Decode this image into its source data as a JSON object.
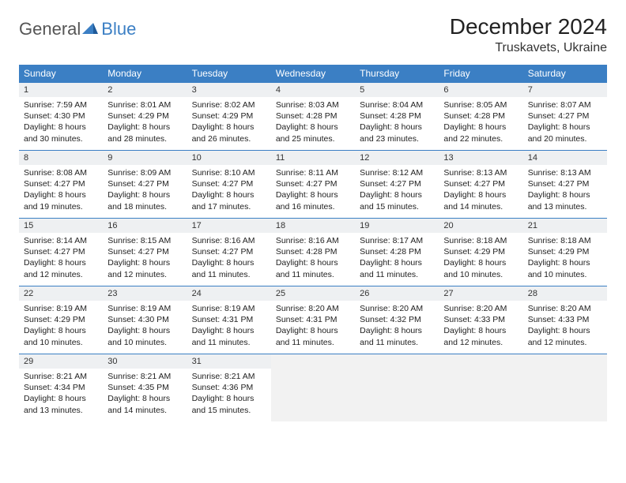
{
  "brand": {
    "general": "General",
    "blue": "Blue"
  },
  "title": "December 2024",
  "location": "Truskavets, Ukraine",
  "colors": {
    "header_bg": "#3b7fc4",
    "header_text": "#ffffff",
    "daynum_bg": "#eef0f2",
    "empty_bg": "#f2f2f2",
    "border": "#3b7fc4",
    "page_bg": "#ffffff",
    "text": "#333333"
  },
  "day_headers": [
    "Sunday",
    "Monday",
    "Tuesday",
    "Wednesday",
    "Thursday",
    "Friday",
    "Saturday"
  ],
  "days": [
    {
      "n": "1",
      "sr": "7:59 AM",
      "ss": "4:30 PM",
      "dl": "8 hours and 30 minutes."
    },
    {
      "n": "2",
      "sr": "8:01 AM",
      "ss": "4:29 PM",
      "dl": "8 hours and 28 minutes."
    },
    {
      "n": "3",
      "sr": "8:02 AM",
      "ss": "4:29 PM",
      "dl": "8 hours and 26 minutes."
    },
    {
      "n": "4",
      "sr": "8:03 AM",
      "ss": "4:28 PM",
      "dl": "8 hours and 25 minutes."
    },
    {
      "n": "5",
      "sr": "8:04 AM",
      "ss": "4:28 PM",
      "dl": "8 hours and 23 minutes."
    },
    {
      "n": "6",
      "sr": "8:05 AM",
      "ss": "4:28 PM",
      "dl": "8 hours and 22 minutes."
    },
    {
      "n": "7",
      "sr": "8:07 AM",
      "ss": "4:27 PM",
      "dl": "8 hours and 20 minutes."
    },
    {
      "n": "8",
      "sr": "8:08 AM",
      "ss": "4:27 PM",
      "dl": "8 hours and 19 minutes."
    },
    {
      "n": "9",
      "sr": "8:09 AM",
      "ss": "4:27 PM",
      "dl": "8 hours and 18 minutes."
    },
    {
      "n": "10",
      "sr": "8:10 AM",
      "ss": "4:27 PM",
      "dl": "8 hours and 17 minutes."
    },
    {
      "n": "11",
      "sr": "8:11 AM",
      "ss": "4:27 PM",
      "dl": "8 hours and 16 minutes."
    },
    {
      "n": "12",
      "sr": "8:12 AM",
      "ss": "4:27 PM",
      "dl": "8 hours and 15 minutes."
    },
    {
      "n": "13",
      "sr": "8:13 AM",
      "ss": "4:27 PM",
      "dl": "8 hours and 14 minutes."
    },
    {
      "n": "14",
      "sr": "8:13 AM",
      "ss": "4:27 PM",
      "dl": "8 hours and 13 minutes."
    },
    {
      "n": "15",
      "sr": "8:14 AM",
      "ss": "4:27 PM",
      "dl": "8 hours and 12 minutes."
    },
    {
      "n": "16",
      "sr": "8:15 AM",
      "ss": "4:27 PM",
      "dl": "8 hours and 12 minutes."
    },
    {
      "n": "17",
      "sr": "8:16 AM",
      "ss": "4:27 PM",
      "dl": "8 hours and 11 minutes."
    },
    {
      "n": "18",
      "sr": "8:16 AM",
      "ss": "4:28 PM",
      "dl": "8 hours and 11 minutes."
    },
    {
      "n": "19",
      "sr": "8:17 AM",
      "ss": "4:28 PM",
      "dl": "8 hours and 11 minutes."
    },
    {
      "n": "20",
      "sr": "8:18 AM",
      "ss": "4:29 PM",
      "dl": "8 hours and 10 minutes."
    },
    {
      "n": "21",
      "sr": "8:18 AM",
      "ss": "4:29 PM",
      "dl": "8 hours and 10 minutes."
    },
    {
      "n": "22",
      "sr": "8:19 AM",
      "ss": "4:29 PM",
      "dl": "8 hours and 10 minutes."
    },
    {
      "n": "23",
      "sr": "8:19 AM",
      "ss": "4:30 PM",
      "dl": "8 hours and 10 minutes."
    },
    {
      "n": "24",
      "sr": "8:19 AM",
      "ss": "4:31 PM",
      "dl": "8 hours and 11 minutes."
    },
    {
      "n": "25",
      "sr": "8:20 AM",
      "ss": "4:31 PM",
      "dl": "8 hours and 11 minutes."
    },
    {
      "n": "26",
      "sr": "8:20 AM",
      "ss": "4:32 PM",
      "dl": "8 hours and 11 minutes."
    },
    {
      "n": "27",
      "sr": "8:20 AM",
      "ss": "4:33 PM",
      "dl": "8 hours and 12 minutes."
    },
    {
      "n": "28",
      "sr": "8:20 AM",
      "ss": "4:33 PM",
      "dl": "8 hours and 12 minutes."
    },
    {
      "n": "29",
      "sr": "8:21 AM",
      "ss": "4:34 PM",
      "dl": "8 hours and 13 minutes."
    },
    {
      "n": "30",
      "sr": "8:21 AM",
      "ss": "4:35 PM",
      "dl": "8 hours and 14 minutes."
    },
    {
      "n": "31",
      "sr": "8:21 AM",
      "ss": "4:36 PM",
      "dl": "8 hours and 15 minutes."
    }
  ],
  "labels": {
    "sunrise": "Sunrise:",
    "sunset": "Sunset:",
    "daylight": "Daylight:"
  },
  "trailing_empty": 4
}
